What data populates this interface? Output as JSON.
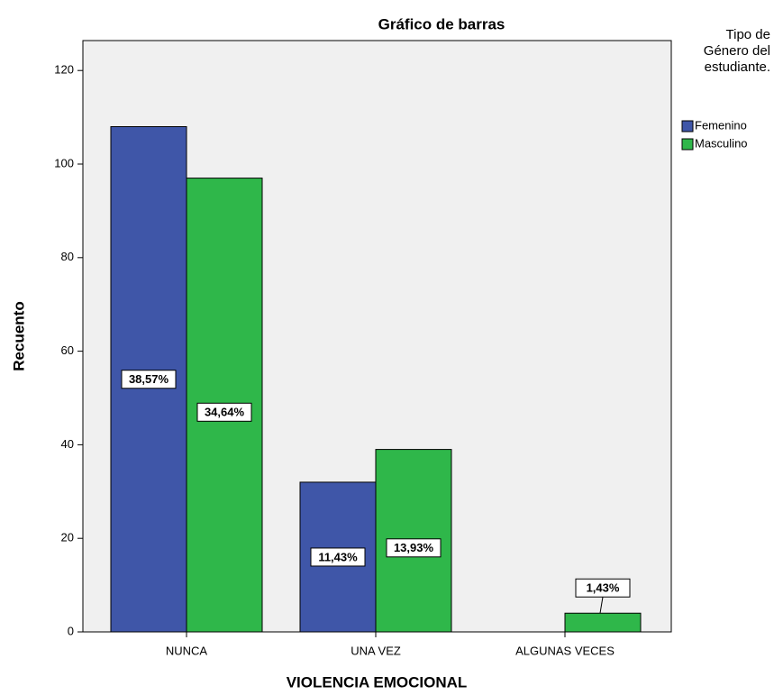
{
  "chart_data": {
    "type": "bar",
    "title": "Gráfico de barras",
    "x_label": "VIOLENCIA EMOCIONAL",
    "y_label": "Recuento",
    "legend_title": "Tipo de Género del estudiante.",
    "categories": [
      "NUNCA",
      "UNA VEZ",
      "ALGUNAS VECES"
    ],
    "series": [
      {
        "name": "Femenino",
        "color": "#3f56a8",
        "values": [
          108,
          32,
          null
        ],
        "data_labels": [
          "38,57%",
          "11,43%",
          null
        ]
      },
      {
        "name": "Masculino",
        "color": "#2fb74a",
        "values": [
          97,
          39,
          4
        ],
        "data_labels": [
          "34,64%",
          "13,93%",
          "1,43%"
        ]
      }
    ],
    "ylim": [
      0,
      126.4
    ],
    "yticks": [
      0,
      20,
      40,
      60,
      80,
      100,
      120
    ]
  }
}
